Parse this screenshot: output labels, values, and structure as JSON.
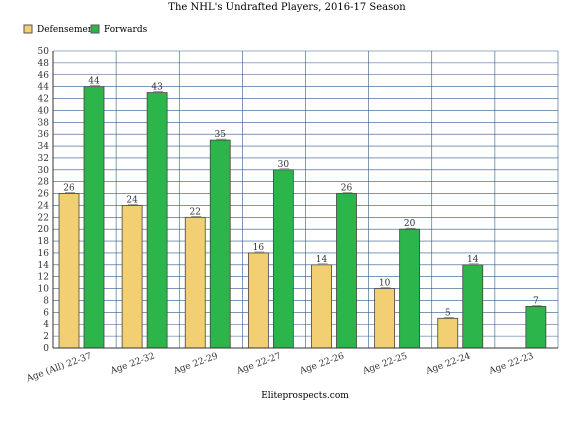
{
  "chart_data": {
    "type": "bar",
    "title": "The NHL's Undrafted Players, 2016-17 Season",
    "source": "Eliteprospects.com",
    "categories": [
      "Age (All) 22-37",
      "Age 22-32",
      "Age 22-29",
      "Age 22-27",
      "Age 22-26",
      "Age 22-25",
      "Age 22-24",
      "Age 22-23"
    ],
    "series": [
      {
        "name": "Defensemen",
        "color": "#f2cf72",
        "values": [
          26,
          24,
          22,
          16,
          14,
          10,
          5,
          null
        ]
      },
      {
        "name": "Forwards",
        "color": "#2bb54a",
        "values": [
          44,
          43,
          35,
          30,
          26,
          20,
          14,
          7
        ]
      }
    ],
    "ylim": [
      0,
      50
    ],
    "ytick_step": 2,
    "grid": true,
    "legend_position": "top-left",
    "grid_color": "#2f5a8a"
  }
}
